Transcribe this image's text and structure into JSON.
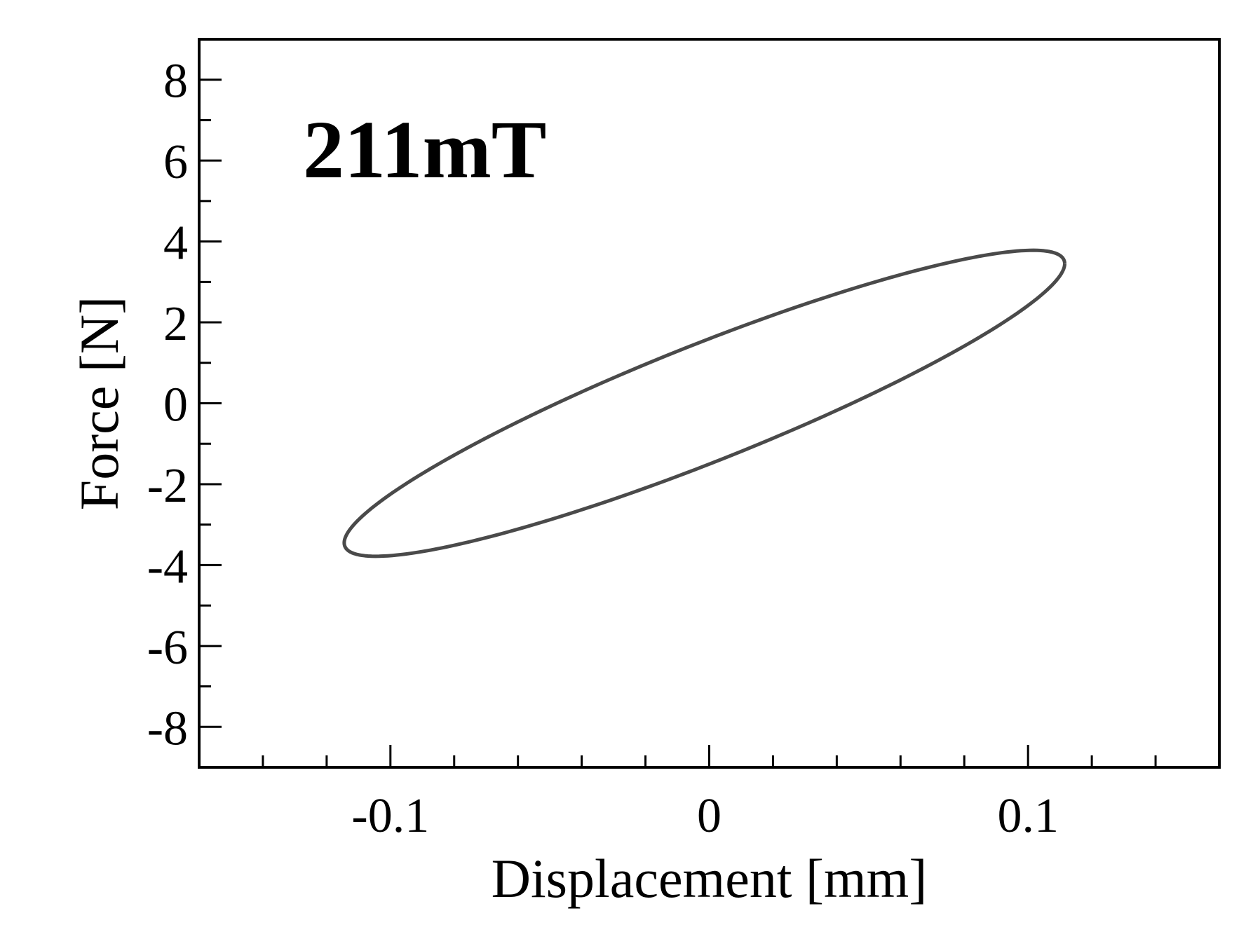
{
  "chart_data": {
    "type": "line",
    "annotation": "211mT",
    "xlabel": "Displacement [mm]",
    "ylabel": "Force [N]",
    "xlim": [
      -0.16,
      0.16
    ],
    "ylim": [
      -9,
      9
    ],
    "xticks": [
      {
        "value": -0.1,
        "label": "-0.1"
      },
      {
        "value": 0,
        "label": "0"
      },
      {
        "value": 0.1,
        "label": "0.1"
      }
    ],
    "xminor": [
      -0.14,
      -0.12,
      -0.08,
      -0.06,
      -0.04,
      -0.02,
      0.02,
      0.04,
      0.06,
      0.08,
      0.12,
      0.14
    ],
    "yticks": [
      {
        "value": 8,
        "label": "8"
      },
      {
        "value": 6,
        "label": "6"
      },
      {
        "value": 4,
        "label": "4"
      },
      {
        "value": 2,
        "label": "2"
      },
      {
        "value": 0,
        "label": "0"
      },
      {
        "value": -2,
        "label": "-2"
      },
      {
        "value": -4,
        "label": "-4"
      },
      {
        "value": -6,
        "label": "-6"
      },
      {
        "value": -8,
        "label": "-8"
      }
    ],
    "yminor": [
      7,
      5,
      3,
      1,
      -1,
      -3,
      -5,
      -7
    ],
    "grid": false,
    "series": [
      {
        "color": "#4a4a4a",
        "loop": {
          "x_amplitude": 0.113,
          "x_center": -0.0015,
          "force_in_phase": 3.45,
          "force_quadrature": 1.55,
          "y_center": 0.0
        }
      }
    ]
  }
}
